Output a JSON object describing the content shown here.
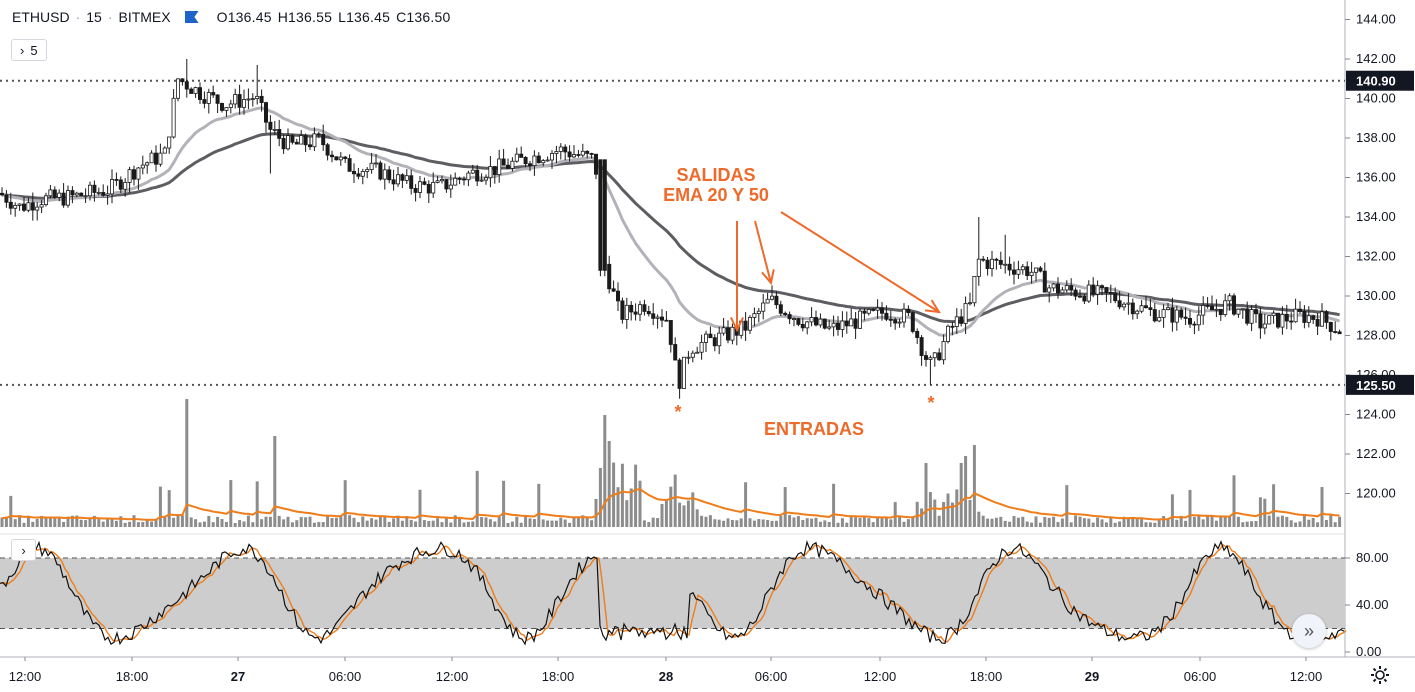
{
  "header": {
    "symbol": "ETHUSD",
    "interval": "15",
    "exchange": "BITMEX",
    "open": "O136.45",
    "high": "H136.55",
    "low": "L136.45",
    "close": "C136.50",
    "indicator_count": "5",
    "flag_color": "#1e64c8"
  },
  "annotations": {
    "exits_line1": "SALIDAS",
    "exits_line2": "EMA 20 Y 50",
    "entries": "ENTRADAS",
    "marker": "*",
    "color": "#ee6a2a"
  },
  "chart_data": [
    {
      "type": "candlestick",
      "y_ticks": [
        "144.00",
        "142.00",
        "140.00",
        "138.00",
        "136.00",
        "134.00",
        "132.00",
        "130.00",
        "128.00",
        "126.00",
        "124.00",
        "122.00",
        "120.00"
      ],
      "ylim": [
        118.3,
        144.9
      ],
      "x_ticks": [
        "12:00",
        "18:00",
        "27",
        "06:00",
        "12:00",
        "18:00",
        "28",
        "06:00",
        "12:00",
        "18:00",
        "29",
        "06:00",
        "12:00"
      ],
      "x_range": [
        "26 09:00",
        "29 13:30"
      ],
      "horizontal_lines": [
        {
          "value": 140.9,
          "label": "140.90"
        },
        {
          "value": 125.5,
          "label": "125.50"
        }
      ],
      "price_path": [
        {
          "t": 0,
          "p": 135.2
        },
        {
          "t": 20,
          "p": 134.5
        },
        {
          "t": 40,
          "p": 134.9
        },
        {
          "t": 70,
          "p": 135.0
        },
        {
          "t": 110,
          "p": 135.4
        },
        {
          "t": 140,
          "p": 136.6
        },
        {
          "t": 165,
          "p": 137.2
        },
        {
          "t": 178,
          "p": 141.0
        },
        {
          "t": 200,
          "p": 140.3
        },
        {
          "t": 225,
          "p": 139.7
        },
        {
          "t": 255,
          "p": 140.1
        },
        {
          "t": 270,
          "p": 138.4
        },
        {
          "t": 290,
          "p": 137.6
        },
        {
          "t": 320,
          "p": 137.9
        },
        {
          "t": 345,
          "p": 136.6
        },
        {
          "t": 380,
          "p": 136.3
        },
        {
          "t": 410,
          "p": 135.6
        },
        {
          "t": 440,
          "p": 135.5
        },
        {
          "t": 470,
          "p": 136.2
        },
        {
          "t": 500,
          "p": 136.5
        },
        {
          "t": 530,
          "p": 137.0
        },
        {
          "t": 560,
          "p": 137.4
        },
        {
          "t": 595,
          "p": 136.9
        },
        {
          "t": 605,
          "p": 131.5
        },
        {
          "t": 620,
          "p": 129.0
        },
        {
          "t": 645,
          "p": 129.6
        },
        {
          "t": 668,
          "p": 128.8
        },
        {
          "t": 678,
          "p": 125.5
        },
        {
          "t": 690,
          "p": 127.4
        },
        {
          "t": 720,
          "p": 127.9
        },
        {
          "t": 745,
          "p": 128.4
        },
        {
          "t": 770,
          "p": 129.8
        },
        {
          "t": 800,
          "p": 128.8
        },
        {
          "t": 830,
          "p": 128.3
        },
        {
          "t": 860,
          "p": 128.8
        },
        {
          "t": 885,
          "p": 129.2
        },
        {
          "t": 910,
          "p": 128.9
        },
        {
          "t": 925,
          "p": 127.0
        },
        {
          "t": 932,
          "p": 126.4
        },
        {
          "t": 950,
          "p": 128.3
        },
        {
          "t": 970,
          "p": 129.5
        },
        {
          "t": 978,
          "p": 131.8
        },
        {
          "t": 1000,
          "p": 131.6
        },
        {
          "t": 1030,
          "p": 131.3
        },
        {
          "t": 1050,
          "p": 130.4
        },
        {
          "t": 1080,
          "p": 130.2
        },
        {
          "t": 1110,
          "p": 130.0
        },
        {
          "t": 1150,
          "p": 129.2
        },
        {
          "t": 1190,
          "p": 128.9
        },
        {
          "t": 1230,
          "p": 129.6
        },
        {
          "t": 1260,
          "p": 128.6
        },
        {
          "t": 1300,
          "p": 129.0
        },
        {
          "t": 1320,
          "p": 128.9
        },
        {
          "t": 1345,
          "p": 128.1
        }
      ],
      "colors": {
        "candle": "#1a1a1a",
        "ema20": "#b2b3b8",
        "ema50": "#5d5d62",
        "level_line": "#555555"
      }
    },
    {
      "type": "bar",
      "name": "volume",
      "colors": {
        "bars": "#8c8c8c",
        "ma": "#ef7d1a"
      }
    },
    {
      "type": "line",
      "name": "stochastic",
      "y_ticks": [
        "80.00",
        "40.00",
        "0.00"
      ],
      "ylim": [
        0,
        100
      ],
      "band": [
        20,
        80
      ],
      "colors": {
        "k": "#111111",
        "d": "#ef7d1a",
        "band": "#cdcdcd"
      }
    }
  ]
}
